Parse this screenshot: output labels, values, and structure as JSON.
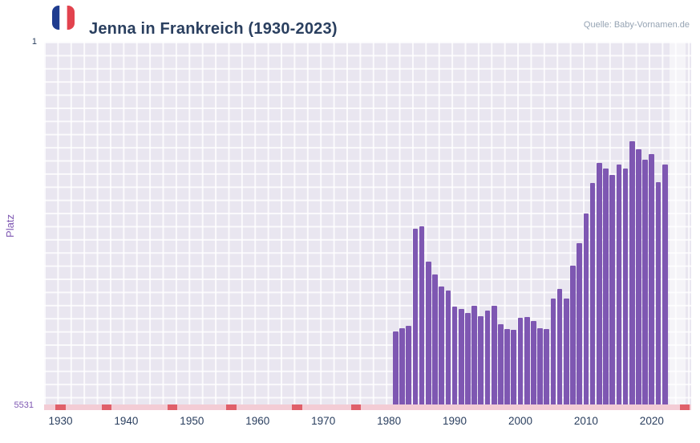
{
  "header": {
    "title": "Jenna in Frankreich (1930-2023)",
    "source": "Quelle: Baby-Vornamen.de",
    "flag_icon": "france-flag-icon"
  },
  "axes": {
    "y_label": "Platz",
    "y_top_tick": "1",
    "y_bottom_tick": "5531",
    "x_ticks": [
      1930,
      1940,
      1950,
      1960,
      1970,
      1980,
      1990,
      2000,
      2010,
      2020
    ]
  },
  "colors": {
    "bar": "#7e57b2",
    "plot_bg": "#e9e6f0",
    "band": "rgba(255,255,255,0.55)",
    "strip": "#f3ccd5",
    "marker": "#e0606a",
    "navy": "#2a3f5f",
    "purple": "#7e57b2",
    "source_text": "#95a3b3"
  },
  "chart_data": {
    "type": "bar",
    "title": "Jenna in Frankreich (1930-2023)",
    "xlabel": "",
    "ylabel": "Platz",
    "grid": true,
    "legend": false,
    "x_range": [
      1927.5,
      2026
    ],
    "y_axis": {
      "min": 1,
      "max": 5531,
      "inverted": true,
      "tick_labels": [
        "1",
        "5531"
      ]
    },
    "x_tick_labels": [
      "1930",
      "1940",
      "1950",
      "1960",
      "1970",
      "1980",
      "1990",
      "2000",
      "2010",
      "2020"
    ],
    "series": [
      {
        "name": "Jenna",
        "x": [
          1981,
          1982,
          1983,
          1984,
          1985,
          1986,
          1987,
          1988,
          1989,
          1990,
          1991,
          1992,
          1993,
          1994,
          1995,
          1996,
          1997,
          1998,
          1999,
          2000,
          2001,
          2002,
          2003,
          2004,
          2005,
          2006,
          2007,
          2008,
          2009,
          2010,
          2011,
          2012,
          2013,
          2014,
          2015,
          2016,
          2017,
          2018,
          2019,
          2020,
          2021,
          2022
        ],
        "values": [
          4350,
          4300,
          4260,
          2810,
          2770,
          3300,
          3490,
          3670,
          3740,
          3980,
          4010,
          4070,
          3970,
          4120,
          4040,
          3970,
          4240,
          4310,
          4330,
          4150,
          4130,
          4190,
          4300,
          4310,
          3860,
          3710,
          3860,
          3360,
          3020,
          2580,
          2120,
          1820,
          1910,
          2000,
          1840,
          1910,
          1500,
          1620,
          1770,
          1690,
          2110,
          1840
        ]
      }
    ],
    "low_rank_marker_years": [
      1930,
      1937,
      1947,
      1956,
      1966,
      1975,
      2025
    ],
    "highlight_band": {
      "from": 2022.65,
      "to": 2025.2
    }
  }
}
